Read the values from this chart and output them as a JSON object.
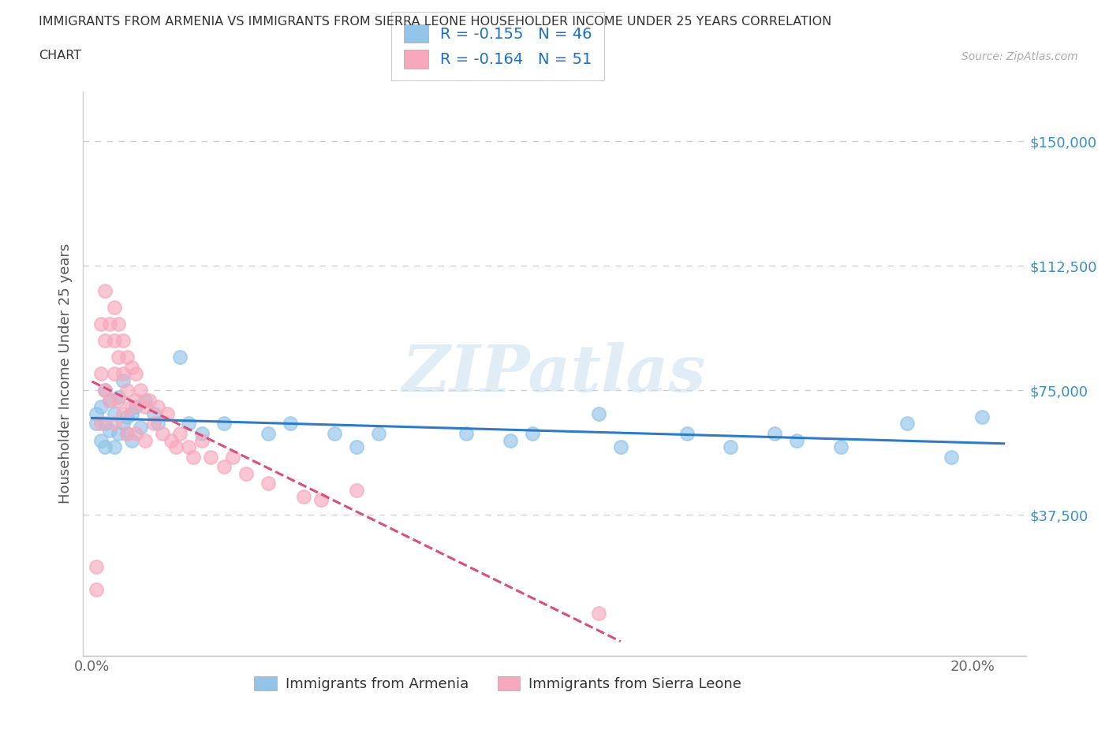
{
  "title_line1": "IMMIGRANTS FROM ARMENIA VS IMMIGRANTS FROM SIERRA LEONE HOUSEHOLDER INCOME UNDER 25 YEARS CORRELATION",
  "title_line2": "CHART",
  "source": "Source: ZipAtlas.com",
  "ylabel": "Householder Income Under 25 years",
  "legend_armenia": "Immigrants from Armenia",
  "legend_sierra": "Immigrants from Sierra Leone",
  "r_armenia": -0.155,
  "n_armenia": 46,
  "r_sierra": -0.164,
  "n_sierra": 51,
  "color_armenia": "#91c4e8",
  "color_sierra": "#f7a8bc",
  "trendline_armenia": "#2c7bc4",
  "trendline_sierra": "#d94f7a",
  "background_color": "#ffffff",
  "watermark": "ZIPatlas",
  "xlim_min": -0.002,
  "xlim_max": 0.212,
  "ylim_min": -5000,
  "ylim_max": 165000,
  "xticks": [
    0.0,
    0.04,
    0.08,
    0.12,
    0.16,
    0.2
  ],
  "xticklabels": [
    "0.0%",
    "",
    "",
    "",
    "",
    "20.0%"
  ],
  "ytick_positions": [
    0,
    37500,
    75000,
    112500,
    150000
  ],
  "ytick_labels": [
    "",
    "$37,500",
    "$75,000",
    "$112,500",
    "$150,000"
  ],
  "armenia_x": [
    0.001,
    0.001,
    0.002,
    0.002,
    0.003,
    0.003,
    0.003,
    0.004,
    0.004,
    0.005,
    0.005,
    0.006,
    0.006,
    0.007,
    0.007,
    0.008,
    0.008,
    0.009,
    0.009,
    0.01,
    0.011,
    0.012,
    0.014,
    0.015,
    0.02,
    0.022,
    0.025,
    0.03,
    0.04,
    0.045,
    0.055,
    0.06,
    0.065,
    0.085,
    0.095,
    0.1,
    0.115,
    0.12,
    0.135,
    0.145,
    0.155,
    0.16,
    0.17,
    0.185,
    0.195,
    0.202
  ],
  "armenia_y": [
    65000,
    68000,
    70000,
    60000,
    75000,
    65000,
    58000,
    72000,
    63000,
    68000,
    58000,
    73000,
    62000,
    65000,
    78000,
    67000,
    62000,
    68000,
    60000,
    70000,
    64000,
    72000,
    68000,
    65000,
    85000,
    65000,
    62000,
    65000,
    62000,
    65000,
    62000,
    58000,
    62000,
    62000,
    60000,
    62000,
    68000,
    58000,
    62000,
    58000,
    62000,
    60000,
    58000,
    65000,
    55000,
    67000
  ],
  "sierra_x": [
    0.001,
    0.001,
    0.002,
    0.002,
    0.002,
    0.003,
    0.003,
    0.003,
    0.004,
    0.004,
    0.005,
    0.005,
    0.005,
    0.005,
    0.006,
    0.006,
    0.006,
    0.007,
    0.007,
    0.007,
    0.008,
    0.008,
    0.008,
    0.009,
    0.009,
    0.01,
    0.01,
    0.01,
    0.011,
    0.012,
    0.012,
    0.013,
    0.014,
    0.015,
    0.016,
    0.017,
    0.018,
    0.019,
    0.02,
    0.022,
    0.023,
    0.025,
    0.027,
    0.03,
    0.032,
    0.035,
    0.04,
    0.048,
    0.052,
    0.06,
    0.115
  ],
  "sierra_y": [
    22000,
    15000,
    95000,
    80000,
    65000,
    105000,
    90000,
    75000,
    95000,
    72000,
    100000,
    90000,
    80000,
    65000,
    95000,
    85000,
    72000,
    90000,
    80000,
    68000,
    85000,
    75000,
    62000,
    82000,
    70000,
    80000,
    72000,
    62000,
    75000,
    70000,
    60000,
    72000,
    65000,
    70000,
    62000,
    68000,
    60000,
    58000,
    62000,
    58000,
    55000,
    60000,
    55000,
    52000,
    55000,
    50000,
    47000,
    43000,
    42000,
    45000,
    8000
  ]
}
